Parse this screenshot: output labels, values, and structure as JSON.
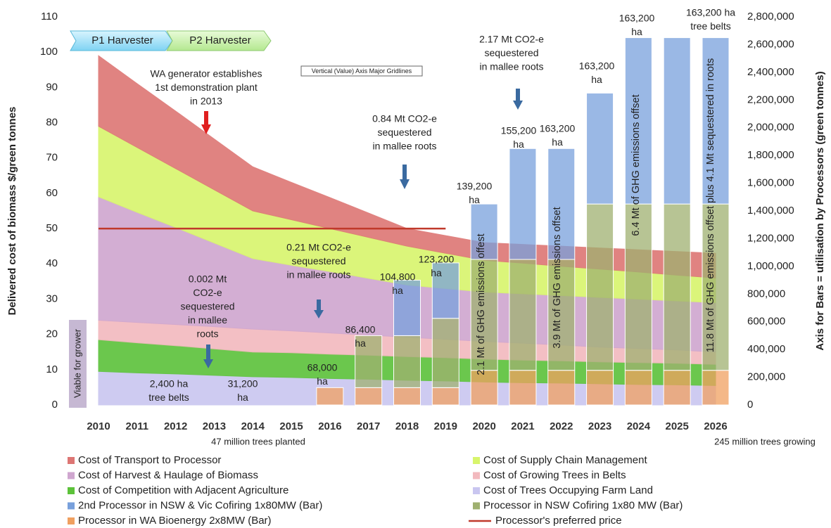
{
  "chart_data": {
    "type": "combo",
    "y_label": "Delivered cost of biomass $/green tonnes",
    "y2_label": "Axis for Bars = utilisation by Processors (green tonnes)",
    "categories": [
      "2010",
      "2011",
      "2012",
      "2013",
      "2014",
      "2015",
      "2016",
      "2017",
      "2018",
      "2019",
      "2020",
      "2021",
      "2022",
      "2023",
      "2024",
      "2025",
      "2026"
    ],
    "ylim": [
      0,
      110
    ],
    "yticks": [
      0,
      10,
      20,
      30,
      40,
      50,
      60,
      70,
      80,
      90,
      100,
      110
    ],
    "y2lim": [
      0,
      2800000
    ],
    "y2ticks": [
      {
        "value": 0,
        "label": "0"
      },
      {
        "value": 200000,
        "label": "200,000"
      },
      {
        "value": 400000,
        "label": "400,000"
      },
      {
        "value": 600000,
        "label": "600,000"
      },
      {
        "value": 800000,
        "label": "800,000"
      },
      {
        "value": 1000000,
        "label": "1,000,000"
      },
      {
        "value": 1200000,
        "label": "1,200,000"
      },
      {
        "value": 1400000,
        "label": "1,400,000"
      },
      {
        "value": 1600000,
        "label": "1,600,000"
      },
      {
        "value": 1800000,
        "label": "1,800,000"
      },
      {
        "value": 2000000,
        "label": "2,000,000"
      },
      {
        "value": 2200000,
        "label": "2,200,000"
      },
      {
        "value": 2400000,
        "label": "2,400,000"
      },
      {
        "value": 2600000,
        "label": "2,600,000"
      },
      {
        "value": 2800000,
        "label": "2,800,000"
      }
    ],
    "series": [
      {
        "name": "Cost of Trees Occupying Farm Land",
        "type": "area",
        "color": "#c9c6f0",
        "values": [
          9.5,
          9.1,
          8.8,
          8.4,
          8.0,
          7.8,
          7.5,
          7.3,
          7.0,
          6.8,
          6.5,
          6.3,
          6.2,
          6.0,
          5.8,
          5.7,
          5.5
        ]
      },
      {
        "name": "Cost of Competition with Adjacent Agriculture",
        "type": "area",
        "color": "#5cc23a",
        "values": [
          9,
          8.5,
          8,
          7.5,
          7,
          7,
          6.9,
          6.8,
          6.7,
          6.6,
          6.5,
          6.4,
          6.3,
          6.2,
          6.2,
          6.1,
          6
        ]
      },
      {
        "name": "Cost of Growing Trees in Belts",
        "type": "area",
        "color": "#f2b9be",
        "values": [
          5.5,
          5.8,
          6,
          6.3,
          6.5,
          6.2,
          6,
          5.7,
          5.5,
          5.2,
          5,
          4.8,
          4.5,
          4.2,
          4,
          3.8,
          3.5
        ]
      },
      {
        "name": "Cost of Harvest & Haulage of Biomass",
        "type": "area",
        "color": "#cfa6cf",
        "values": [
          35,
          31.2,
          27.5,
          23.7,
          20,
          18.6,
          17.4,
          16.1,
          14.8,
          14.4,
          14,
          14,
          14,
          14.1,
          14,
          13.9,
          14
        ]
      },
      {
        "name": "Cost of Supply Chain Management",
        "type": "area",
        "color": "#d8f56c",
        "values": [
          20,
          18.4,
          16.7,
          15.1,
          13.5,
          12.9,
          12.2,
          11.6,
          11,
          10,
          9,
          8.7,
          8.3,
          8,
          7.7,
          7.3,
          7
        ]
      },
      {
        "name": "Cost of Transport to Processor",
        "type": "area",
        "color": "#dd7674",
        "values": [
          20,
          18.1,
          16.3,
          14.4,
          12.5,
          10.6,
          8.8,
          6.9,
          5,
          5,
          5,
          5.3,
          5.7,
          6,
          6.3,
          6.7,
          7
        ]
      },
      {
        "name": "Processor in WA Bioenergy 2x8MW (Bar)",
        "type": "bar",
        "axis": "y2",
        "color": "#f0a060",
        "values": [
          null,
          null,
          null,
          null,
          null,
          null,
          125000,
          125000,
          125000,
          125000,
          250000,
          250000,
          250000,
          250000,
          250000,
          250000,
          250000
        ]
      },
      {
        "name": "Processor in NSW Cofiring 1x80 MW (Bar)",
        "type": "bar",
        "axis": "y2",
        "color": "#9fb070",
        "values": [
          null,
          null,
          null,
          null,
          null,
          null,
          null,
          375000,
          375000,
          500000,
          800000,
          800000,
          800000,
          1200000,
          1200000,
          1200000,
          1200000
        ]
      },
      {
        "name": "2nd Processor in NSW & Vic Cofiring 1x80MW (Bar)",
        "type": "bar",
        "axis": "y2",
        "color": "#78a0dc",
        "values": [
          null,
          null,
          null,
          null,
          null,
          null,
          null,
          null,
          400000,
          400000,
          400000,
          800000,
          800000,
          800000,
          1200000,
          1200000,
          1200000
        ]
      },
      {
        "name": "Processor's preferred price",
        "type": "line",
        "color": "#c0392b",
        "values": [
          50,
          50,
          50,
          50,
          50,
          50,
          50,
          50,
          50,
          50,
          null,
          null,
          null,
          null,
          null,
          null,
          null
        ]
      }
    ],
    "annotations": [
      {
        "lines": [
          "WA generator establishes",
          "1st demonstration plant",
          "in 2013"
        ]
      },
      {
        "lines": [
          "0.84 Mt  CO2-e",
          "sequestered",
          "in mallee roots"
        ]
      },
      {
        "lines": [
          "2.17 Mt  CO2-e",
          "sequestered",
          "in mallee roots"
        ]
      },
      {
        "lines": [
          "0.21 Mt  CO2-e",
          "sequestered",
          "in mallee roots"
        ]
      },
      {
        "lines": [
          "0.002 Mt",
          "CO2-e",
          "sequestered",
          "in mallee",
          "roots"
        ]
      },
      {
        "lines": [
          "2,400 ha",
          "tree belts"
        ]
      },
      {
        "lines": [
          "31,200",
          "ha"
        ]
      },
      {
        "lines": [
          "68,000",
          "ha"
        ]
      },
      {
        "lines": [
          "86,400",
          "ha"
        ]
      },
      {
        "lines": [
          "104,800",
          "ha"
        ]
      },
      {
        "lines": [
          "123,200",
          "ha"
        ]
      },
      {
        "lines": [
          "139,200",
          "ha"
        ]
      },
      {
        "lines": [
          "155,200",
          "ha"
        ]
      },
      {
        "lines": [
          "163,200",
          "ha"
        ]
      },
      {
        "lines": [
          "163,200",
          "ha"
        ]
      },
      {
        "lines": [
          "163,200",
          "ha"
        ]
      },
      {
        "lines": [
          "163,200 ha",
          "tree belts"
        ]
      }
    ],
    "vertical_notes": [
      "2.1 Mt of GHG emissions offest",
      "3.9 Mt of GHG emissions offset",
      "6.4 Mt of GHG emissions offset",
      "11.8 Mt of GHG emissions offset plus 4.1 Mt sequestered in roots"
    ],
    "viable_label": "Viable for grower",
    "tooltip": "Vertical (Value) Axis Major Gridlines",
    "phases": [
      "P1 Harvester",
      "P2 Harvester"
    ],
    "x_notes": [
      "47 million trees planted",
      "245 million trees growing"
    ]
  }
}
